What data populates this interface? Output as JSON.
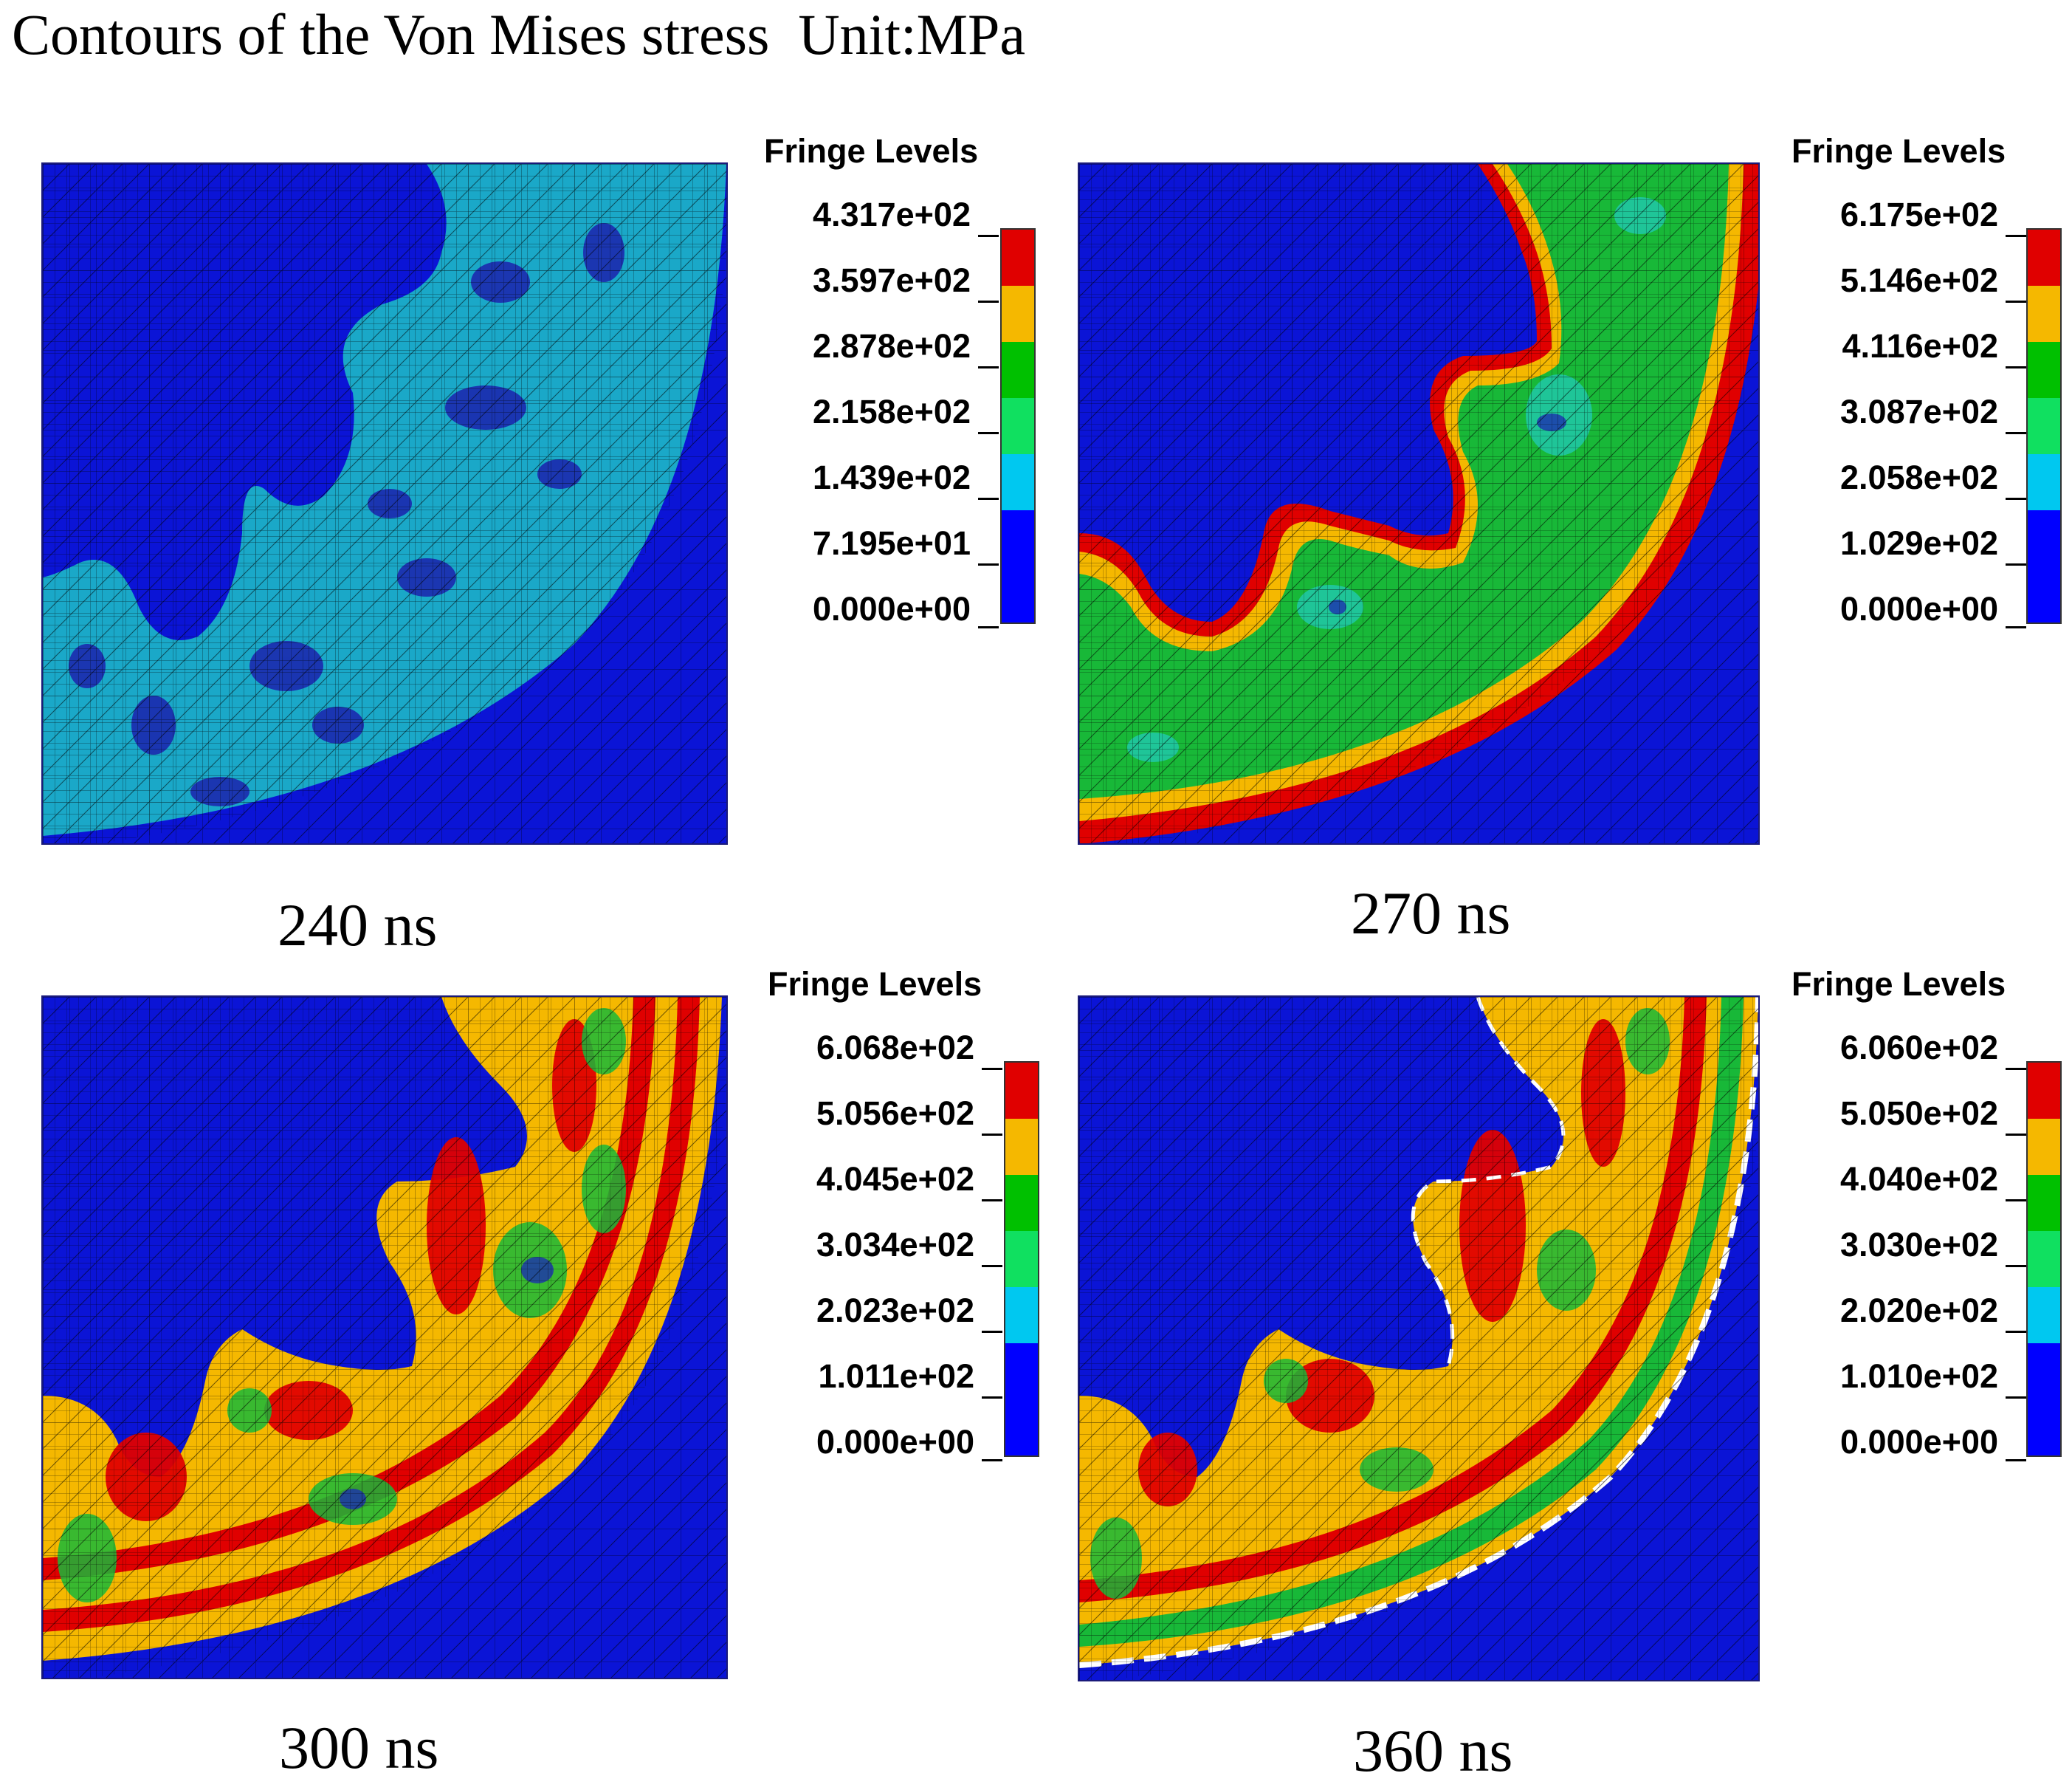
{
  "title": "Contours of the Von Mises stress  Unit:MPa",
  "fringe_colors": [
    "#e00000",
    "#f5b800",
    "#00c000",
    "#10e060",
    "#00c8f0",
    "#0000ff"
  ],
  "panels": [
    {
      "time": "240 ns",
      "fringe_title": "Fringe Levels",
      "levels": [
        "4.317e+02",
        "3.597e+02",
        "2.878e+02",
        "2.158e+02",
        "1.439e+02",
        "7.195e+01",
        "0.000e+00"
      ]
    },
    {
      "time": "270 ns",
      "fringe_title": "Fringe Levels",
      "levels": [
        "6.175e+02",
        "5.146e+02",
        "4.116e+02",
        "3.087e+02",
        "2.058e+02",
        "1.029e+02",
        "0.000e+00"
      ]
    },
    {
      "time": "300 ns",
      "fringe_title": "Fringe Levels",
      "levels": [
        "6.068e+02",
        "5.056e+02",
        "4.045e+02",
        "3.034e+02",
        "2.023e+02",
        "1.011e+02",
        "0.000e+00"
      ]
    },
    {
      "time": "360 ns",
      "fringe_title": "Fringe Levels",
      "levels": [
        "6.060e+02",
        "5.050e+02",
        "4.040e+02",
        "3.030e+02",
        "2.020e+02",
        "1.010e+02",
        "0.000e+00"
      ]
    }
  ]
}
